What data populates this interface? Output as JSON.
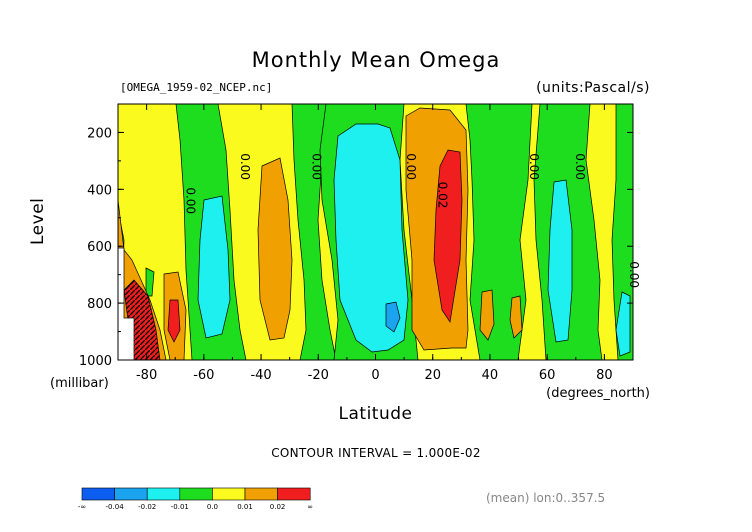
{
  "chart_data": {
    "type": "heatmap",
    "title": "Monthly Mean Omega",
    "source_label": "[OMEGA_1959-02_NCEP.nc]",
    "units_label": "(units:Pascal/s)",
    "xlabel": "Latitude",
    "x_units": "(degrees_north)",
    "ylabel": "Level",
    "y_units": "(millibar)",
    "xlim": [
      -90,
      90
    ],
    "ylim": [
      1000,
      100
    ],
    "x_ticks": [
      "-80",
      "-60",
      "-40",
      "-20",
      "0",
      "20",
      "40",
      "60",
      "80"
    ],
    "x_tick_values": [
      -80,
      -60,
      -40,
      -20,
      0,
      20,
      40,
      60,
      80
    ],
    "y_ticks": [
      "200",
      "400",
      "600",
      "800",
      "1000"
    ],
    "y_tick_values": [
      200,
      400,
      600,
      800,
      1000
    ],
    "contour_interval": "CONTOUR INTERVAL = 1.000E-02",
    "mean_label": "(mean) lon:0..357.5",
    "contour_labels": [
      {
        "text": "0.00",
        "lat": -66,
        "lev": 440
      },
      {
        "text": "0.00",
        "lat": -47,
        "lev": 320
      },
      {
        "text": "0.00",
        "lat": -22,
        "lev": 320
      },
      {
        "text": "0.00",
        "lat": 11,
        "lev": 320
      },
      {
        "text": "0.02",
        "lat": 22,
        "lev": 420
      },
      {
        "text": "0.00",
        "lat": 54,
        "lev": 320
      },
      {
        "text": "0.00",
        "lat": 70,
        "lev": 320
      },
      {
        "text": "0.00",
        "lat": 89,
        "lev": 700
      }
    ],
    "colorbar": {
      "colors": [
        "#0b5ef0",
        "#1aa4f0",
        "#1ef0f0",
        "#1edc1e",
        "#fafa1e",
        "#f0a000",
        "#f01e1e"
      ],
      "labels": [
        "-∞",
        "-0.04",
        "-0.02",
        "-0.01",
        "0.0",
        "0.01",
        "0.02",
        "∞"
      ]
    },
    "legend_placement": "bottom-left",
    "grid": false
  }
}
